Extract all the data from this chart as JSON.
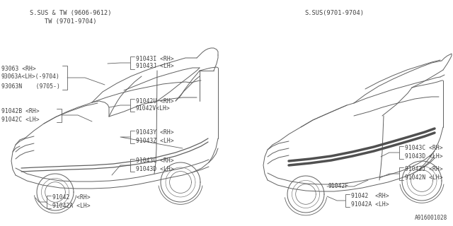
{
  "bg_color": "#ffffff",
  "line_color": "#606060",
  "text_color": "#404040",
  "title_left_line1": "S.SUS & TW (9606-9612)",
  "title_left_line2": "TW (9701-9704)",
  "title_right": "S.SUS(9701-9704)",
  "part_number_ref": "A916001028",
  "figsize": [
    6.4,
    3.2
  ],
  "dpi": 100
}
